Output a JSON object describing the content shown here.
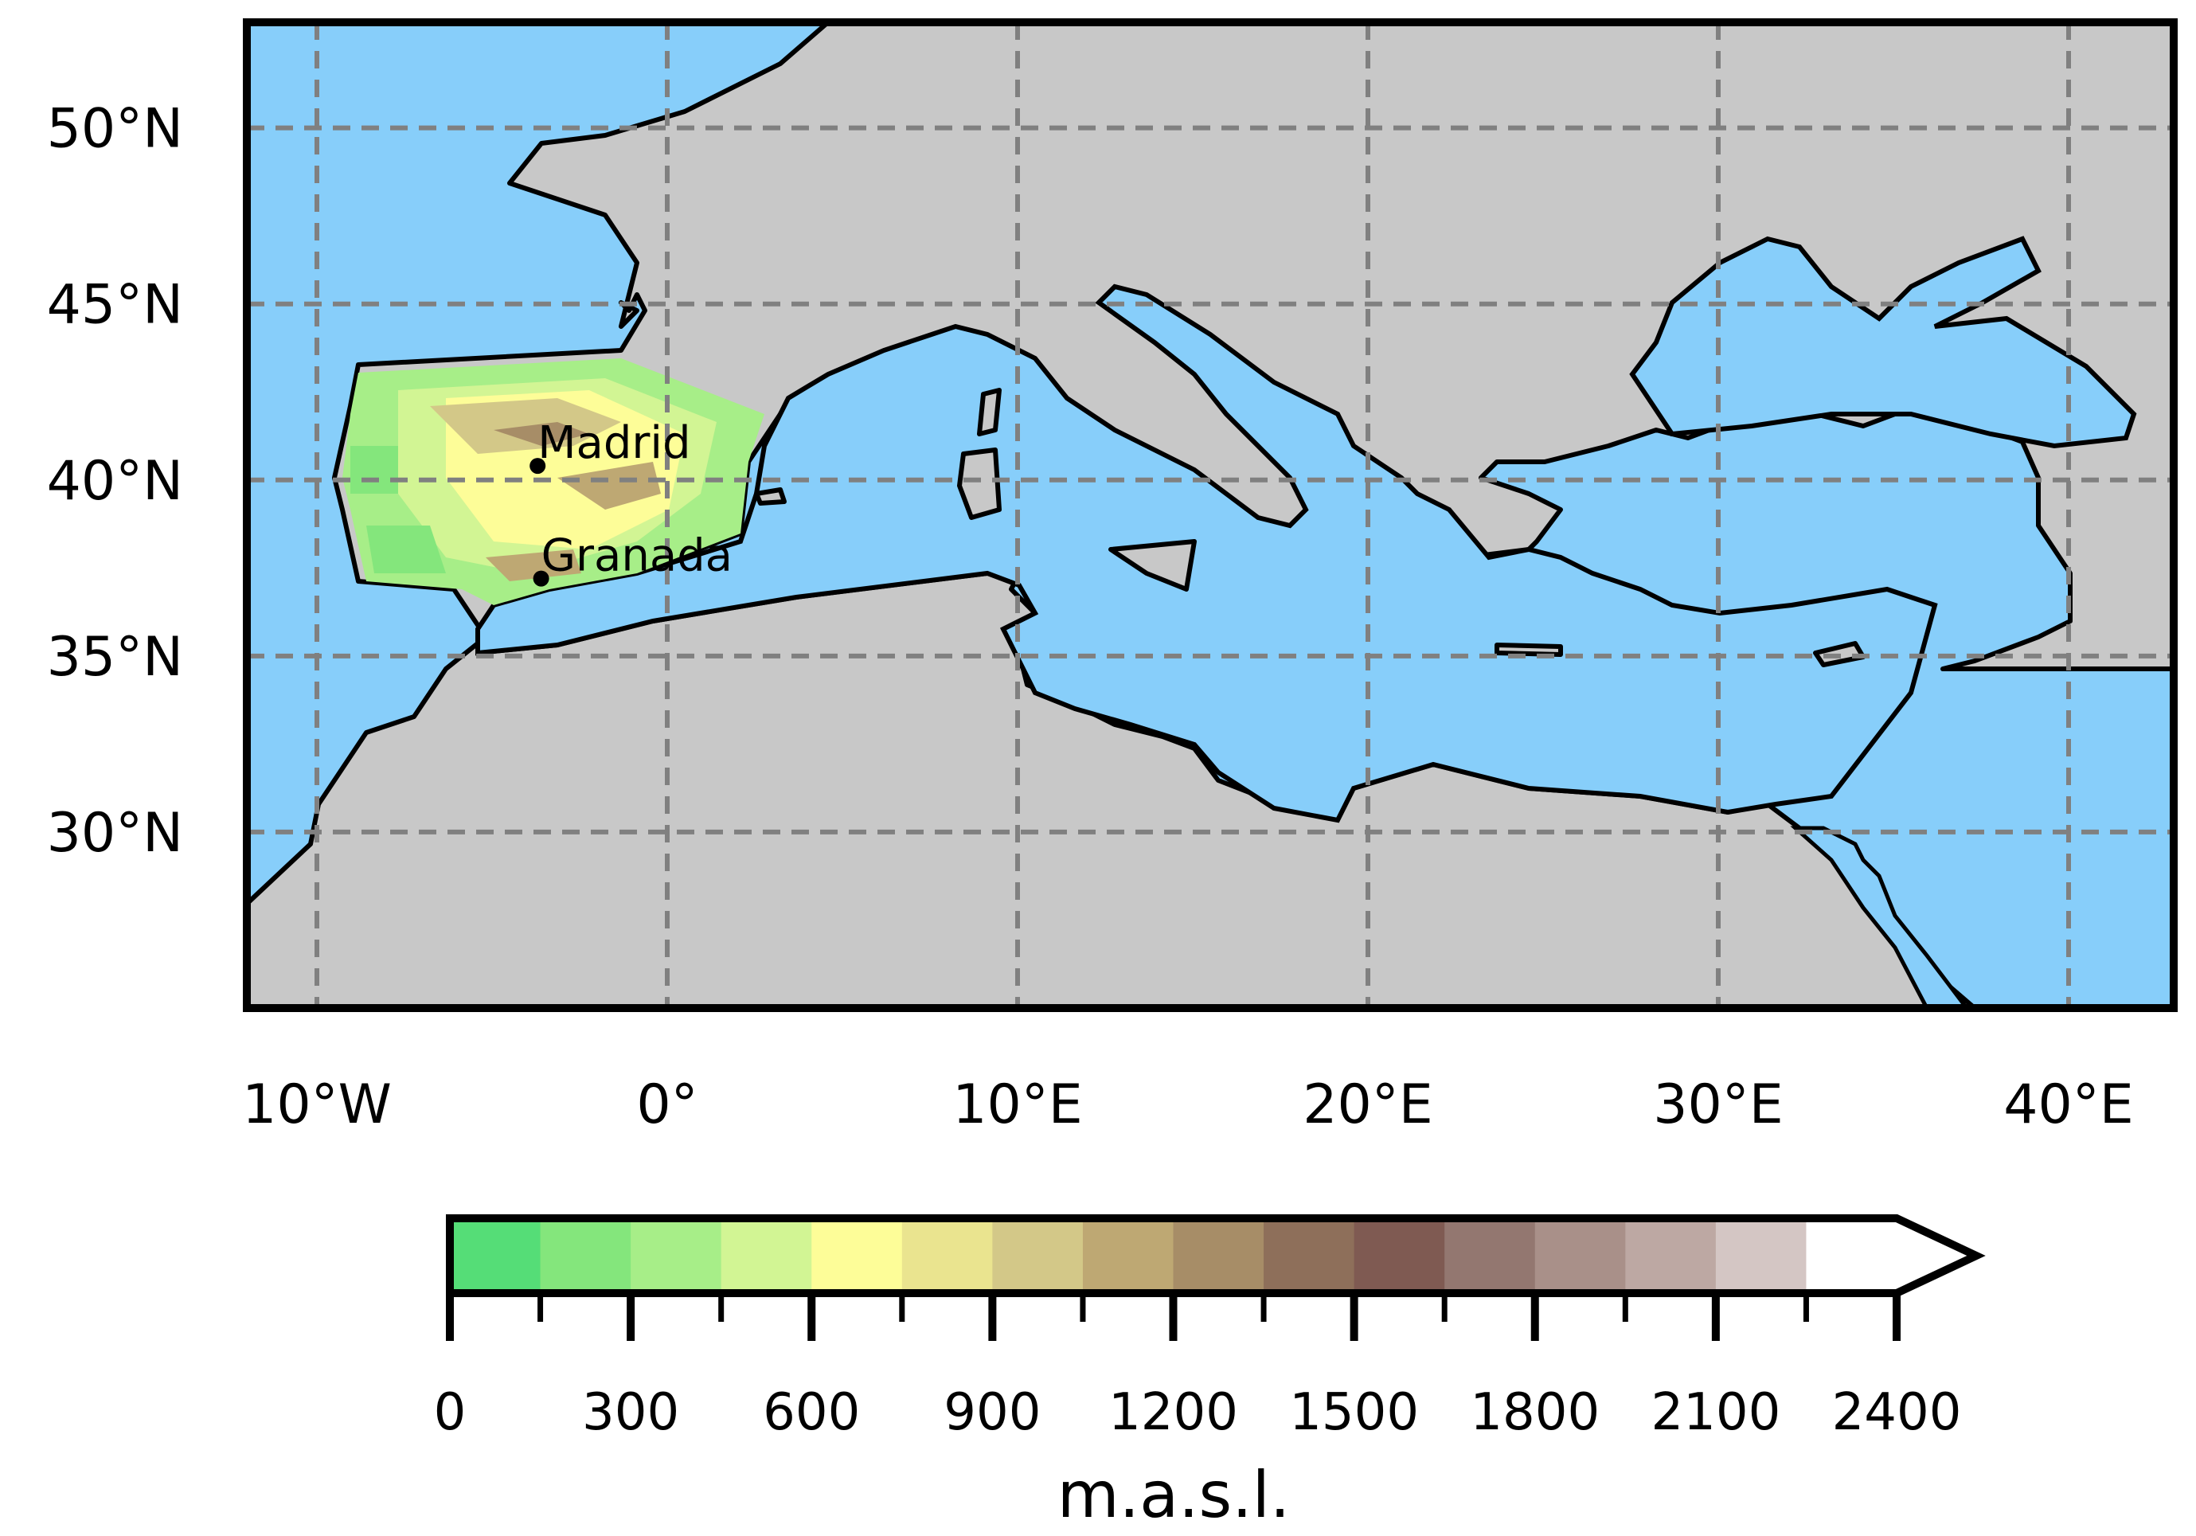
{
  "map": {
    "extent": {
      "lon_min": -12,
      "lon_max": 43,
      "lat_min": 25,
      "lat_max": 53
    },
    "lon_ticks": [
      {
        "value": -10,
        "label": "10°W"
      },
      {
        "value": 0,
        "label": "0°"
      },
      {
        "value": 10,
        "label": "10°E"
      },
      {
        "value": 20,
        "label": "20°E"
      },
      {
        "value": 30,
        "label": "30°E"
      },
      {
        "value": 40,
        "label": "40°E"
      }
    ],
    "lat_ticks": [
      {
        "value": 50,
        "label": "50°N"
      },
      {
        "value": 45,
        "label": "45°N"
      },
      {
        "value": 40,
        "label": "40°N"
      },
      {
        "value": 35,
        "label": "35°N"
      },
      {
        "value": 30,
        "label": "30°N"
      }
    ],
    "cities": [
      {
        "name": "Madrid",
        "lon": -3.7,
        "lat": 40.4
      },
      {
        "name": "Granada",
        "lon": -3.6,
        "lat": 37.2
      }
    ],
    "colors": {
      "sea": "#87cefa",
      "land": "#c8c8c8",
      "grid": "#808080"
    }
  },
  "colorbar": {
    "unit": "m.a.s.l.",
    "min": 0,
    "max": 2400,
    "step": 150,
    "extend": "max",
    "labels": [
      "0",
      "300",
      "600",
      "900",
      "1200",
      "1500",
      "1800",
      "2100",
      "2400"
    ],
    "colors": [
      "#55dd77",
      "#84e67c",
      "#a7ee88",
      "#d2f594",
      "#fdfd98",
      "#eae48f",
      "#d3c888",
      "#bea873",
      "#a78d67",
      "#8e6f5a",
      "#7f5a52",
      "#937770",
      "#a99089",
      "#bda8a3",
      "#d4c6c4",
      "#ffffff"
    ],
    "extend_color": "#ffffff"
  }
}
